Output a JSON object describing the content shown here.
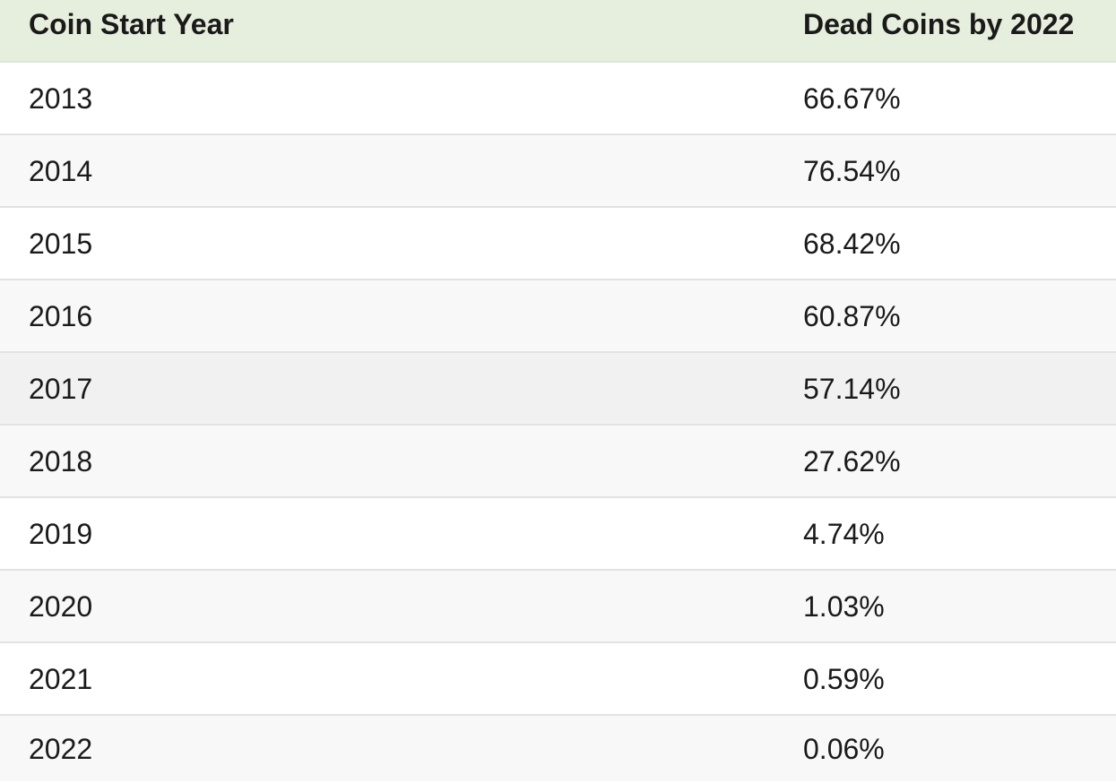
{
  "table": {
    "headers": [
      "Coin Start Year",
      "Dead Coins by 2022"
    ],
    "rows": [
      {
        "year": "2013",
        "dead": "66.67%"
      },
      {
        "year": "2014",
        "dead": "76.54%"
      },
      {
        "year": "2015",
        "dead": "68.42%"
      },
      {
        "year": "2016",
        "dead": "60.87%"
      },
      {
        "year": "2017",
        "dead": "57.14%"
      },
      {
        "year": "2018",
        "dead": "27.62%"
      },
      {
        "year": "2019",
        "dead": "4.74%"
      },
      {
        "year": "2020",
        "dead": "1.03%"
      },
      {
        "year": "2021",
        "dead": "0.59%"
      },
      {
        "year": "2022",
        "dead": "0.06%"
      }
    ]
  },
  "colors": {
    "header_bg": "#e6eedd",
    "row_alt_bg": "#f8f8f8",
    "row_highlight_bg": "#f1f1f1"
  }
}
